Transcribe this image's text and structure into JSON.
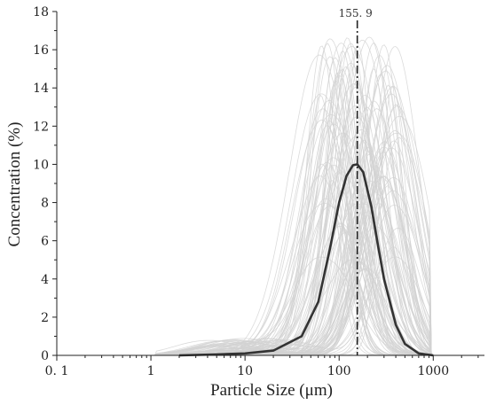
{
  "chart_data": {
    "type": "line",
    "xlabel": "Particle Size (μm)",
    "ylabel": "Concentration (%)",
    "x_scale": "log",
    "xlim": [
      0.1,
      3500
    ],
    "ylim": [
      0,
      18
    ],
    "x_tick_labels": [
      {
        "value": 0.1,
        "label": "0. 1"
      },
      {
        "value": 1,
        "label": "1"
      },
      {
        "value": 10,
        "label": "10"
      },
      {
        "value": 100,
        "label": "100"
      },
      {
        "value": 1000,
        "label": "1000"
      }
    ],
    "y_ticks": [
      0,
      2,
      4,
      6,
      8,
      10,
      12,
      14,
      16,
      18
    ],
    "grid": false,
    "legend": "none",
    "annotation": {
      "x": 155.9,
      "label": "155. 9",
      "style": "dash-dot vertical line"
    },
    "series": [
      {
        "role": "mean curve",
        "color": "#333333",
        "x": [
          2,
          5,
          10,
          20,
          40,
          60,
          80,
          100,
          120,
          140,
          155.9,
          180,
          220,
          260,
          300,
          400,
          500,
          700,
          1000
        ],
        "y": [
          0,
          0.05,
          0.1,
          0.25,
          1.0,
          2.8,
          5.6,
          8.0,
          9.4,
          9.95,
          10.0,
          9.6,
          7.8,
          5.7,
          4.0,
          1.6,
          0.6,
          0.1,
          0
        ]
      }
    ],
    "gray_curves": {
      "color": "#d2d2d2",
      "count": 110,
      "description_values": {
        "peak_x_range": [
          60,
          450
        ],
        "peak_y_range": [
          3.5,
          16.8
        ],
        "max_peak_x": 160,
        "max_peak_y": 16.8
      }
    }
  }
}
